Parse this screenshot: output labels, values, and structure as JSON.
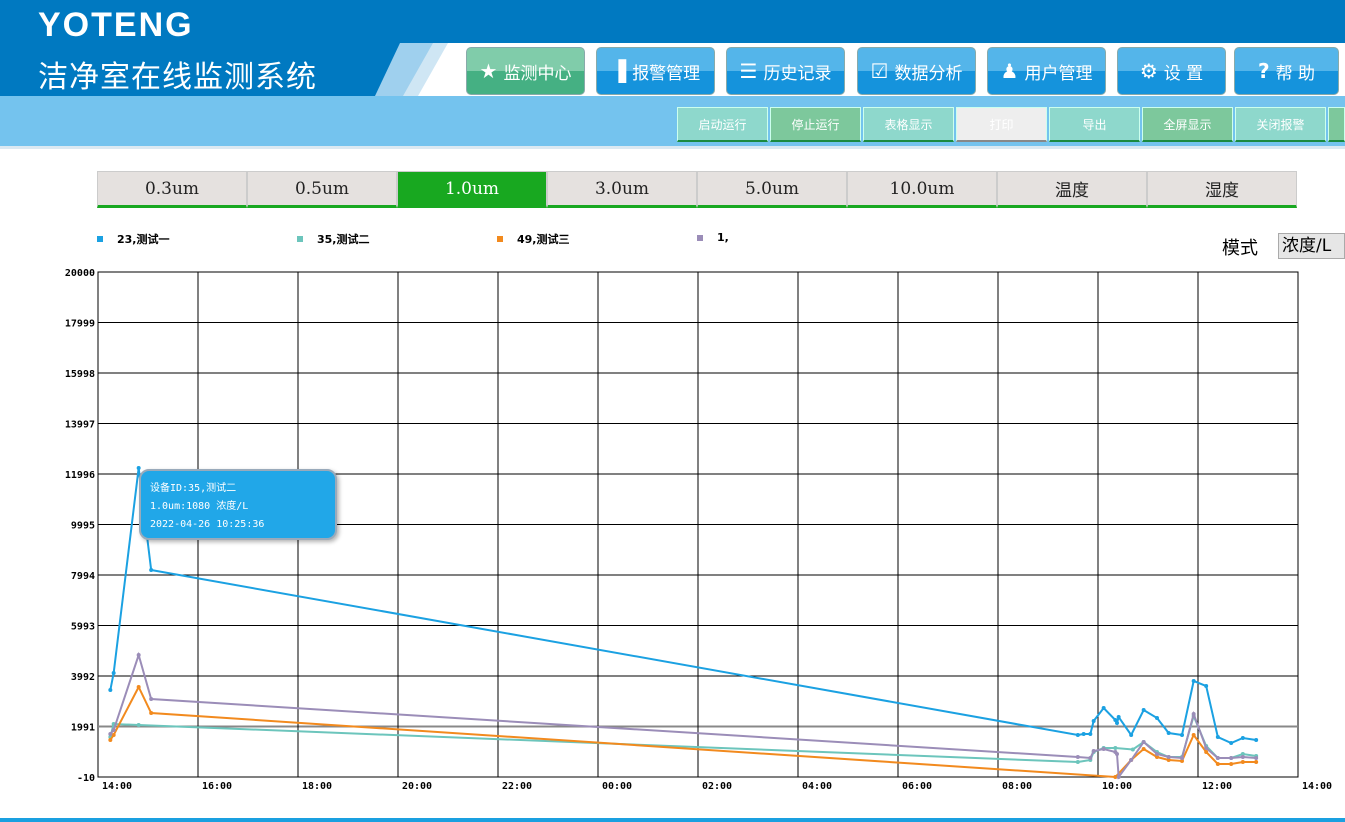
{
  "header": {
    "brand": "YOTENG",
    "title": "洁净室在线监测系统"
  },
  "nav": [
    {
      "label": "监测中心",
      "icon": "running-man-icon",
      "glyph": "★",
      "active": true
    },
    {
      "label": "报警管理",
      "icon": "bar-chart-icon",
      "glyph": "▐",
      "active": false
    },
    {
      "label": "历史记录",
      "icon": "document-list-icon",
      "glyph": "☰",
      "active": false
    },
    {
      "label": "数据分析",
      "icon": "map-book-icon",
      "glyph": "☑",
      "active": false
    },
    {
      "label": "用户管理",
      "icon": "users-icon",
      "glyph": "♟",
      "active": false
    },
    {
      "label": "设 置",
      "icon": "gear-icon",
      "glyph": "⚙",
      "active": false
    },
    {
      "label": "帮 助",
      "icon": "question-icon",
      "glyph": "?",
      "active": false
    }
  ],
  "toolbar": [
    "启动运行",
    "停止运行",
    "表格显示",
    "打印",
    "导出",
    "全屏显示",
    "关闭报警",
    ""
  ],
  "tabs": [
    "0.3um",
    "0.5um",
    "1.0um",
    "3.0um",
    "5.0um",
    "10.0um",
    "温度",
    "湿度"
  ],
  "active_tab": "1.0um",
  "mode": {
    "label": "模式",
    "value": "浓度/L"
  },
  "tooltip": {
    "line1": "设备ID:35,测试二",
    "line2": "1.0um:1080 浓度/L",
    "line3": "2022-04-26 10:25:36"
  },
  "chart_data": {
    "type": "line",
    "legend_position": "top",
    "grid": true,
    "ylim": [
      -10,
      20000
    ],
    "yticks": [
      "20000",
      "17999",
      "15998",
      "13997",
      "11996",
      "9995",
      "7994",
      "5993",
      "3992",
      "1991",
      "-10"
    ],
    "xlim": [
      "2022-04-25 14:00",
      "2022-04-26 14:00"
    ],
    "xticks": [
      "14:00",
      "16:00",
      "18:00",
      "20:00",
      "22:00",
      "00:00",
      "02:00",
      "04:00",
      "06:00",
      "08:00",
      "10:00",
      "12:00",
      "14:00"
    ],
    "series": [
      {
        "name": "23,测试一",
        "color": "#1BA1E2",
        "points": [
          [
            "2022-04-25 13:58",
            3437
          ],
          [
            "2022-04-25 14:02",
            4110
          ],
          [
            "2022-04-25 14:32",
            12233
          ],
          [
            "2022-04-25 14:47",
            8191
          ],
          [
            "2022-04-26 09:19",
            1654
          ],
          [
            "2022-04-26 09:26",
            1694
          ],
          [
            "2022-04-26 09:34",
            1694
          ],
          [
            "2022-04-26 09:38",
            2209
          ],
          [
            "2022-04-26 09:50",
            2724
          ],
          [
            "2022-04-26 10:04",
            2248
          ],
          [
            "2022-04-26 10:06",
            2130
          ],
          [
            "2022-04-26 10:08",
            2367
          ],
          [
            "2022-04-26 10:23",
            1654
          ],
          [
            "2022-04-26 10:38",
            2645
          ],
          [
            "2022-04-26 10:54",
            2328
          ],
          [
            "2022-04-26 11:08",
            1733
          ],
          [
            "2022-04-26 11:24",
            1654
          ],
          [
            "2022-04-26 11:38",
            3794
          ],
          [
            "2022-04-26 11:53",
            3595
          ],
          [
            "2022-04-26 12:07",
            1575
          ],
          [
            "2022-04-26 12:23",
            1337
          ],
          [
            "2022-04-26 12:37",
            1535
          ],
          [
            "2022-04-26 12:53",
            1456
          ]
        ]
      },
      {
        "name": "35,测试二",
        "color": "#6CC5BC",
        "points": [
          [
            "2022-04-25 13:58",
            1575
          ],
          [
            "2022-04-25 14:02",
            2090
          ],
          [
            "2022-04-25 14:32",
            2050
          ],
          [
            "2022-04-26 09:19",
            584
          ],
          [
            "2022-04-26 09:34",
            663
          ],
          [
            "2022-04-26 09:38",
            981
          ],
          [
            "2022-04-26 09:50",
            1139
          ],
          [
            "2022-04-26 10:04",
            1139
          ],
          [
            "2022-04-26 10:25",
            1080
          ],
          [
            "2022-04-26 10:38",
            1377
          ],
          [
            "2022-04-26 10:54",
            981
          ],
          [
            "2022-04-26 11:08",
            782
          ],
          [
            "2022-04-26 11:24",
            782
          ],
          [
            "2022-04-26 11:38",
            2407
          ],
          [
            "2022-04-26 11:53",
            1218
          ],
          [
            "2022-04-26 12:07",
            743
          ],
          [
            "2022-04-26 12:23",
            743
          ],
          [
            "2022-04-26 12:37",
            901
          ],
          [
            "2022-04-26 12:53",
            822
          ]
        ]
      },
      {
        "name": "49,测试三",
        "color": "#F28A1E",
        "points": [
          [
            "2022-04-25 13:58",
            1456
          ],
          [
            "2022-04-25 14:02",
            1654
          ],
          [
            "2022-04-25 14:32",
            3556
          ],
          [
            "2022-04-25 14:47",
            2526
          ],
          [
            "2022-04-26 10:04",
            -10
          ],
          [
            "2022-04-26 10:23",
            663
          ],
          [
            "2022-04-26 10:38",
            1099
          ],
          [
            "2022-04-26 10:54",
            782
          ],
          [
            "2022-04-26 11:08",
            663
          ],
          [
            "2022-04-26 11:24",
            624
          ],
          [
            "2022-04-26 11:38",
            1654
          ],
          [
            "2022-04-26 11:53",
            981
          ],
          [
            "2022-04-26 12:07",
            505
          ],
          [
            "2022-04-26 12:23",
            505
          ],
          [
            "2022-04-26 12:37",
            584
          ],
          [
            "2022-04-26 12:53",
            584
          ]
        ]
      },
      {
        "name": "1,",
        "color": "#9B8DB8",
        "points": [
          [
            "2022-04-25 13:58",
            1694
          ],
          [
            "2022-04-25 14:02",
            1850
          ],
          [
            "2022-04-25 14:32",
            4824
          ],
          [
            "2022-04-25 14:47",
            3080
          ],
          [
            "2022-04-26 09:19",
            782
          ],
          [
            "2022-04-26 09:34",
            743
          ],
          [
            "2022-04-26 09:38",
            1020
          ],
          [
            "2022-04-26 09:50",
            1099
          ],
          [
            "2022-04-26 10:04",
            981
          ],
          [
            "2022-04-26 10:06",
            901
          ],
          [
            "2022-04-26 10:08",
            -10
          ],
          [
            "2022-04-26 10:23",
            663
          ],
          [
            "2022-04-26 10:38",
            1377
          ],
          [
            "2022-04-26 10:54",
            901
          ],
          [
            "2022-04-26 11:08",
            782
          ],
          [
            "2022-04-26 11:24",
            743
          ],
          [
            "2022-04-26 11:38",
            2486
          ],
          [
            "2022-04-26 11:53",
            1139
          ],
          [
            "2022-04-26 12:07",
            743
          ],
          [
            "2022-04-26 12:23",
            743
          ],
          [
            "2022-04-26 12:37",
            782
          ],
          [
            "2022-04-26 12:53",
            743
          ]
        ]
      }
    ]
  }
}
